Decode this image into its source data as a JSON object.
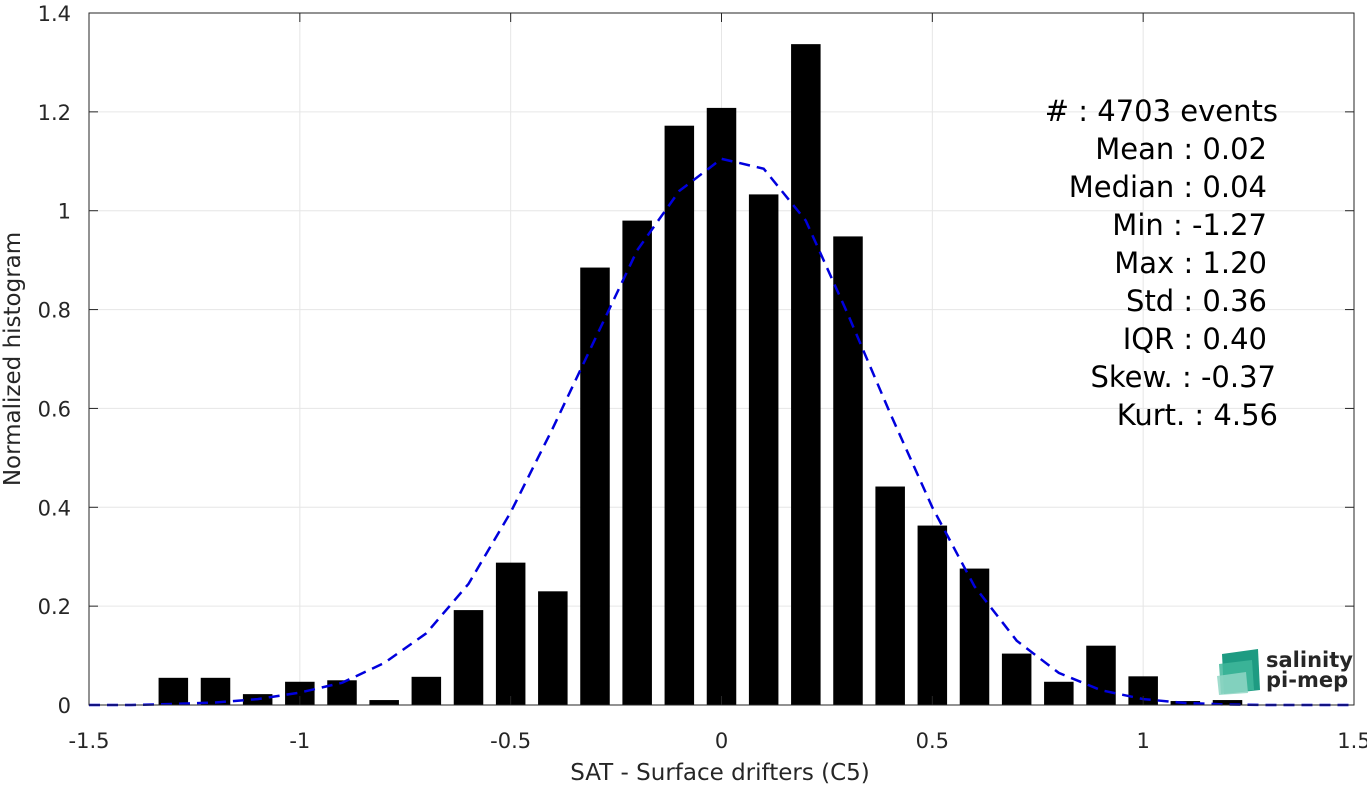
{
  "chart_data": {
    "type": "bar",
    "xlabel": "SAT - Surface drifters (C5)",
    "ylabel": "Normalized histogram",
    "xlim": [
      -1.5,
      1.5
    ],
    "ylim": [
      0,
      1.4
    ],
    "xticks": [
      -1.5,
      -1,
      -0.5,
      0,
      0.5,
      1,
      1.5
    ],
    "xtick_labels": [
      "-1.5",
      "-1",
      "-0.5",
      "0",
      "0.5",
      "1",
      "1.5"
    ],
    "yticks": [
      0,
      0.2,
      0.4,
      0.6,
      0.8,
      1,
      1.2,
      1.4
    ],
    "ytick_labels": [
      "0",
      "0.2",
      "0.4",
      "0.6",
      "0.8",
      "1",
      "1.2",
      "1.4"
    ],
    "grid": true,
    "bar_color": "#000000",
    "bar_width": 0.07,
    "bars": {
      "x": [
        -1.3,
        -1.2,
        -1.1,
        -1.0,
        -0.9,
        -0.8,
        -0.7,
        -0.6,
        -0.5,
        -0.4,
        -0.3,
        -0.2,
        -0.1,
        0.0,
        0.1,
        0.2,
        0.3,
        0.4,
        0.5,
        0.6,
        0.7,
        0.8,
        0.9,
        1.0,
        1.1,
        1.2
      ],
      "values": [
        0.055,
        0.055,
        0.022,
        0.047,
        0.05,
        0.01,
        0.057,
        0.192,
        0.288,
        0.23,
        0.885,
        0.98,
        1.172,
        1.208,
        1.033,
        1.337,
        0.948,
        0.442,
        0.363,
        0.276,
        0.104,
        0.047,
        0.12,
        0.058,
        0.008,
        0.01
      ]
    },
    "fit_curve": {
      "style": "dashed",
      "color": "#0000dd",
      "x": [
        -1.5,
        -1.4,
        -1.3,
        -1.2,
        -1.1,
        -1.0,
        -0.9,
        -0.8,
        -0.7,
        -0.6,
        -0.5,
        -0.4,
        -0.3,
        -0.2,
        -0.1,
        0.0,
        0.1,
        0.2,
        0.3,
        0.4,
        0.5,
        0.6,
        0.7,
        0.8,
        0.9,
        1.0,
        1.1,
        1.2,
        1.3,
        1.4,
        1.5
      ],
      "y": [
        0.0,
        0.0,
        0.002,
        0.005,
        0.012,
        0.025,
        0.045,
        0.085,
        0.145,
        0.245,
        0.39,
        0.56,
        0.74,
        0.92,
        1.04,
        1.105,
        1.085,
        0.98,
        0.79,
        0.59,
        0.4,
        0.24,
        0.13,
        0.065,
        0.03,
        0.012,
        0.004,
        0.001,
        0.0,
        0.0,
        0.0
      ]
    },
    "stats": [
      "#  : 4703 events",
      "Mean : 0.02",
      "Median : 0.04",
      "Min : -1.27",
      "Max : 1.20",
      "Std : 0.36",
      "IQR : 0.40",
      "Skew. : -0.37",
      "Kurt. : 4.56"
    ]
  },
  "logo": {
    "line1": "salinity",
    "line2": "pi-mep",
    "color": "#1aa58a"
  }
}
